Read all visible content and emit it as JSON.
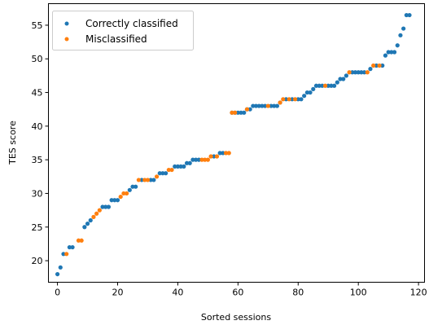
{
  "chart_data": {
    "type": "scatter",
    "xlabel": "Sorted sessions",
    "ylabel": "TES score",
    "xlim": [
      -3,
      122
    ],
    "ylim": [
      16.8,
      58.2
    ],
    "xticks": [
      0,
      20,
      40,
      60,
      80,
      100,
      120
    ],
    "yticks": [
      20,
      25,
      30,
      35,
      40,
      45,
      50,
      55
    ],
    "grid": false,
    "legend_position": "top-left",
    "series": [
      {
        "name": "Correctly classified",
        "color": "#1f77b4",
        "points": [
          [
            0,
            18
          ],
          [
            1,
            19
          ],
          [
            2,
            21
          ],
          [
            4,
            22
          ],
          [
            5,
            22
          ],
          [
            9,
            25
          ],
          [
            10,
            25.5
          ],
          [
            11,
            26
          ],
          [
            15,
            28
          ],
          [
            16,
            28
          ],
          [
            17,
            28
          ],
          [
            18,
            29
          ],
          [
            19,
            29
          ],
          [
            20,
            29
          ],
          [
            24,
            30.5
          ],
          [
            25,
            31
          ],
          [
            26,
            31
          ],
          [
            28,
            32
          ],
          [
            31,
            32
          ],
          [
            32,
            32
          ],
          [
            34,
            33
          ],
          [
            35,
            33
          ],
          [
            36,
            33
          ],
          [
            39,
            34
          ],
          [
            40,
            34
          ],
          [
            41,
            34
          ],
          [
            42,
            34
          ],
          [
            43,
            34.5
          ],
          [
            44,
            34.5
          ],
          [
            45,
            35
          ],
          [
            46,
            35
          ],
          [
            47,
            35
          ],
          [
            52,
            35.5
          ],
          [
            54,
            36
          ],
          [
            55,
            36
          ],
          [
            58,
            42
          ],
          [
            59,
            42
          ],
          [
            60,
            42
          ],
          [
            61,
            42
          ],
          [
            62,
            42
          ],
          [
            63,
            42.5
          ],
          [
            64,
            42.5
          ],
          [
            65,
            43
          ],
          [
            66,
            43
          ],
          [
            67,
            43
          ],
          [
            68,
            43
          ],
          [
            69,
            43
          ],
          [
            71,
            43
          ],
          [
            72,
            43
          ],
          [
            73,
            43
          ],
          [
            74,
            43.5
          ],
          [
            76,
            44
          ],
          [
            78,
            44
          ],
          [
            80,
            44
          ],
          [
            81,
            44
          ],
          [
            82,
            44.5
          ],
          [
            83,
            45
          ],
          [
            84,
            45
          ],
          [
            85,
            45.5
          ],
          [
            86,
            46
          ],
          [
            87,
            46
          ],
          [
            88,
            46
          ],
          [
            90,
            46
          ],
          [
            91,
            46
          ],
          [
            92,
            46
          ],
          [
            93,
            46.5
          ],
          [
            94,
            47
          ],
          [
            95,
            47
          ],
          [
            96,
            47.5
          ],
          [
            98,
            48
          ],
          [
            99,
            48
          ],
          [
            100,
            48
          ],
          [
            101,
            48
          ],
          [
            102,
            48
          ],
          [
            104,
            48.5
          ],
          [
            106,
            49
          ],
          [
            108,
            49
          ],
          [
            109,
            50.5
          ],
          [
            110,
            51
          ],
          [
            111,
            51
          ],
          [
            112,
            51
          ],
          [
            113,
            52
          ],
          [
            114,
            53.5
          ],
          [
            115,
            54.5
          ],
          [
            116,
            56.5
          ],
          [
            117,
            56.5
          ]
        ]
      },
      {
        "name": "Misclassified",
        "color": "#ff7f0e",
        "points": [
          [
            3,
            21
          ],
          [
            7,
            23
          ],
          [
            8,
            23
          ],
          [
            12,
            26.5
          ],
          [
            13,
            27
          ],
          [
            14,
            27.5
          ],
          [
            21,
            29.5
          ],
          [
            22,
            30
          ],
          [
            23,
            30
          ],
          [
            27,
            32
          ],
          [
            29,
            32
          ],
          [
            30,
            32
          ],
          [
            33,
            32.5
          ],
          [
            37,
            33.5
          ],
          [
            38,
            33.5
          ],
          [
            48,
            35
          ],
          [
            49,
            35
          ],
          [
            50,
            35
          ],
          [
            51,
            35.5
          ],
          [
            53,
            35.5
          ],
          [
            56,
            36
          ],
          [
            57,
            36
          ],
          [
            58,
            42
          ],
          [
            59,
            42
          ],
          [
            63,
            42.5
          ],
          [
            70,
            43
          ],
          [
            74,
            43.5
          ],
          [
            75,
            44
          ],
          [
            77,
            44
          ],
          [
            79,
            44
          ],
          [
            89,
            46
          ],
          [
            97,
            48
          ],
          [
            103,
            48
          ],
          [
            105,
            49
          ],
          [
            107,
            49
          ]
        ]
      }
    ]
  }
}
